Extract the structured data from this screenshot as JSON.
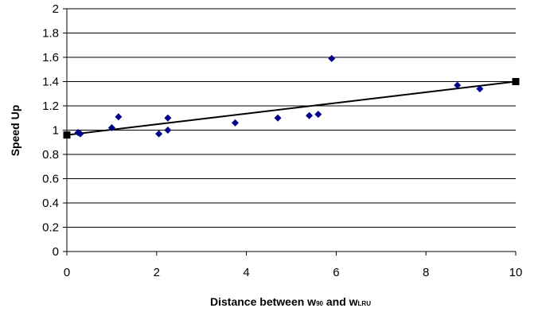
{
  "chart_data": {
    "type": "scatter",
    "xlabel": {
      "parts": [
        {
          "text": "Distance between w",
          "sub": false
        },
        {
          "text": "90",
          "sub": true
        },
        {
          "text": " and w",
          "sub": false
        },
        {
          "text": "LRU",
          "sub": true
        }
      ]
    },
    "ylabel": "Speed Up",
    "xlim": [
      0,
      10
    ],
    "ylim": [
      0,
      2
    ],
    "x_ticks": [
      "0",
      "2",
      "4",
      "6",
      "8",
      "10"
    ],
    "y_ticks": [
      "0",
      "0.2",
      "0.4",
      "0.6",
      "0.8",
      "1",
      "1.2",
      "1.4",
      "1.6",
      "1.8",
      "2"
    ],
    "grid": "horizontal",
    "series": [
      {
        "marker": "diamond",
        "color": "#00008B",
        "points": [
          {
            "x": 0.25,
            "y": 0.98
          },
          {
            "x": 0.3,
            "y": 0.97
          },
          {
            "x": 1.0,
            "y": 1.02
          },
          {
            "x": 1.15,
            "y": 1.11
          },
          {
            "x": 2.05,
            "y": 0.97
          },
          {
            "x": 2.25,
            "y": 1.1
          },
          {
            "x": 2.25,
            "y": 1.0
          },
          {
            "x": 3.75,
            "y": 1.06
          },
          {
            "x": 4.7,
            "y": 1.1
          },
          {
            "x": 5.4,
            "y": 1.12
          },
          {
            "x": 5.6,
            "y": 1.13
          },
          {
            "x": 5.9,
            "y": 1.59
          },
          {
            "x": 8.7,
            "y": 1.37
          },
          {
            "x": 9.2,
            "y": 1.34
          }
        ]
      }
    ],
    "trend_line": {
      "color": "#000000",
      "marker": "square",
      "points": [
        {
          "x": 0,
          "y": 0.96
        },
        {
          "x": 10,
          "y": 1.4
        }
      ]
    }
  }
}
